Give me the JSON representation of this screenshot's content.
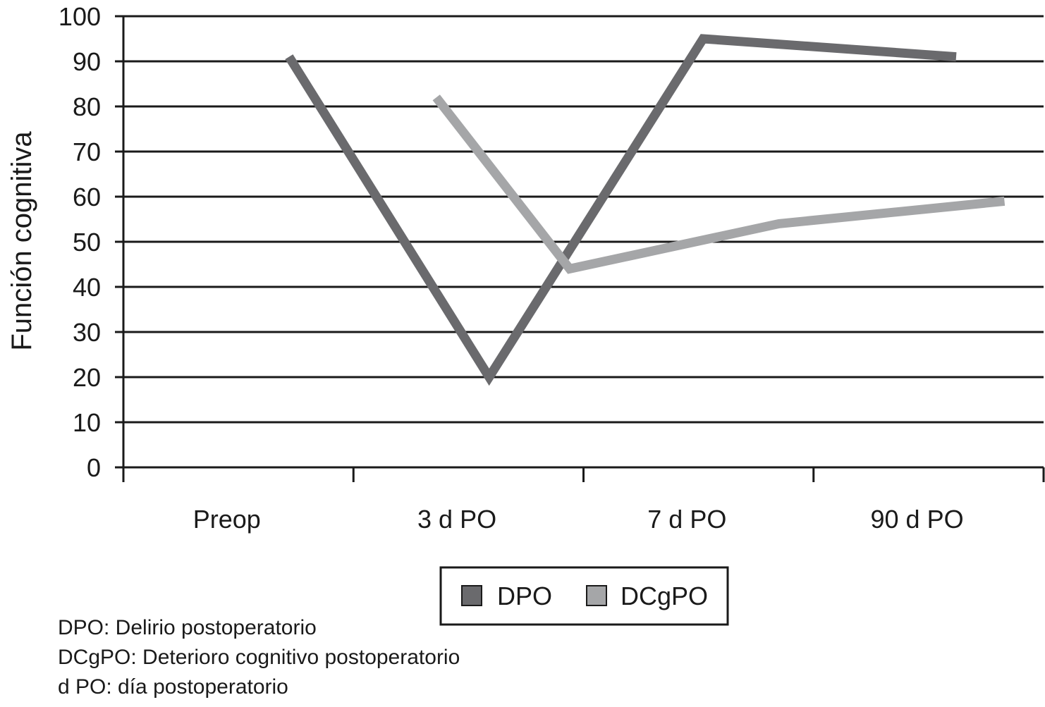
{
  "chart_data": {
    "type": "line",
    "ylabel": "Función cognitiva",
    "xlabel": "",
    "categories": [
      "Preop",
      "3 d PO",
      "7 d PO",
      "90 d PO"
    ],
    "ylim": [
      0,
      100
    ],
    "yticks": [
      0,
      10,
      20,
      30,
      40,
      50,
      60,
      70,
      80,
      90,
      100
    ],
    "grid": true,
    "legend_position": "bottom",
    "series": [
      {
        "name": "DPO",
        "color": "#6a6a6d",
        "points": [
          {
            "x": 0.72,
            "y": 91
          },
          {
            "x": 1.59,
            "y": 20
          },
          {
            "x": 2.52,
            "y": 95
          },
          {
            "x": 3.62,
            "y": 91
          }
        ]
      },
      {
        "name": "DCgPO",
        "color": "#a5a6a8",
        "points": [
          {
            "x": 1.36,
            "y": 82
          },
          {
            "x": 1.94,
            "y": 44
          },
          {
            "x": 2.85,
            "y": 54
          },
          {
            "x": 3.83,
            "y": 59
          }
        ]
      }
    ]
  },
  "footnotes": [
    "DPO: Delirio postoperatorio",
    "DCgPO: Deterioro cognitivo postoperatorio",
    "d PO: día postoperatorio"
  ]
}
